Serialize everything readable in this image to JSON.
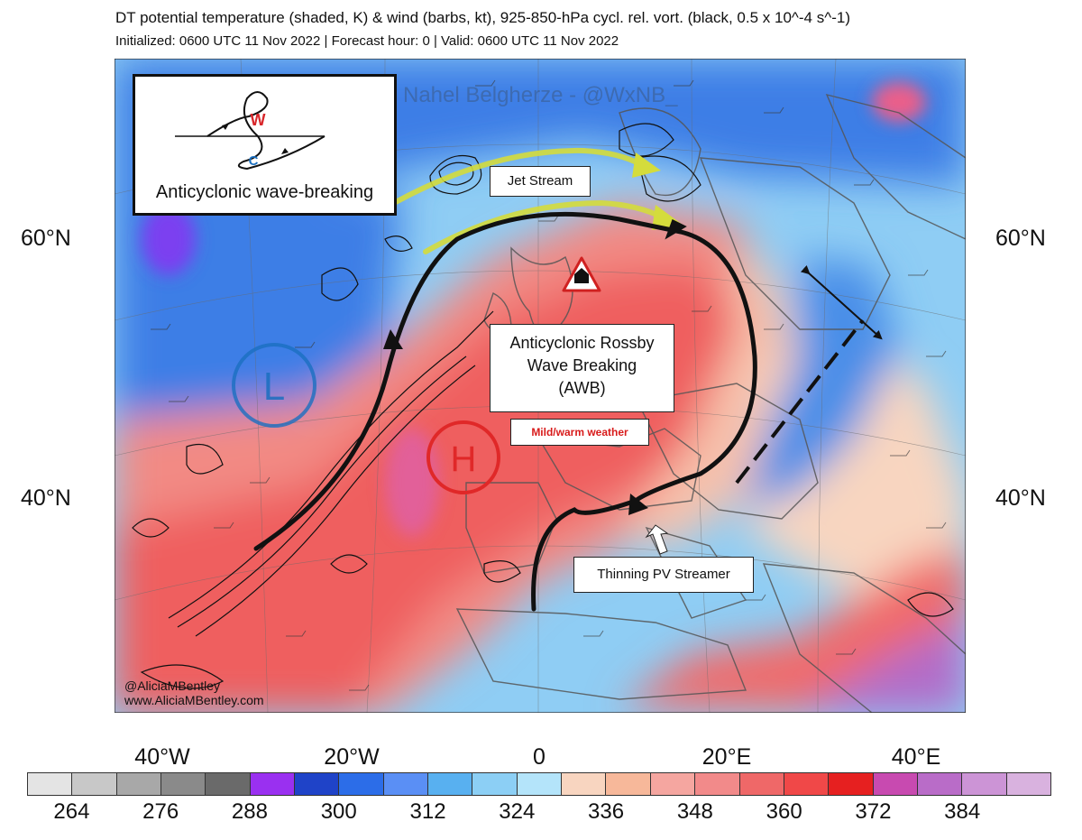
{
  "header": {
    "title": "DT potential temperature (shaded, K) & wind (barbs, kt), 925-850-hPa cycl. rel. vort. (black, 0.5 x 10^-4 s^-1)",
    "subtitle": "Initialized: 0600 UTC 11 Nov 2022 | Forecast hour: 0 | Valid: 0600 UTC 11 Nov 2022"
  },
  "axes": {
    "lat_labels": [
      "60°N",
      "40°N"
    ],
    "lon_labels": [
      "40°W",
      "20°W",
      "0",
      "20°E",
      "40°E"
    ]
  },
  "annotations": {
    "watermark": "Nahel Belgherze - @WxNB_",
    "inset_title": "Anticyclonic wave-breaking",
    "inset_warm": "W",
    "inset_cold": "C",
    "jet_stream": "Jet Stream",
    "awb_line1": "Anticyclonic Rossby",
    "awb_line2": "Wave Breaking",
    "awb_line3": "(AWB)",
    "mild_weather": "Mild/warm weather",
    "pv_streamer": "Thinning PV Streamer",
    "low_symbol": "L",
    "high_symbol": "H",
    "credit_handle": "@AliciaMBentley",
    "credit_site": "www.AliciaMBentley.com"
  },
  "colorbar": {
    "labels": [
      "264",
      "276",
      "288",
      "300",
      "312",
      "324",
      "336",
      "348",
      "360",
      "372",
      "384"
    ],
    "colors": [
      "#e4e4e4",
      "#c8c8c8",
      "#a8a8a8",
      "#8a8a8a",
      "#6a6a6a",
      "#9a30f0",
      "#1f43c8",
      "#2c6de8",
      "#5a8ff5",
      "#58b0f0",
      "#8ccff5",
      "#b4e4fa",
      "#f8d5c0",
      "#f7b89a",
      "#f5a6a0",
      "#f28a8a",
      "#ef6868",
      "#f04848",
      "#e62020",
      "#c84ab0",
      "#b96cc8",
      "#cc94d6",
      "#d9b2df"
    ]
  },
  "legend_colors": {
    "low": "#1a6fc0",
    "high": "#e02828",
    "jet_arrow": "#d4dc3c",
    "mild_text": "#d81b1b"
  }
}
